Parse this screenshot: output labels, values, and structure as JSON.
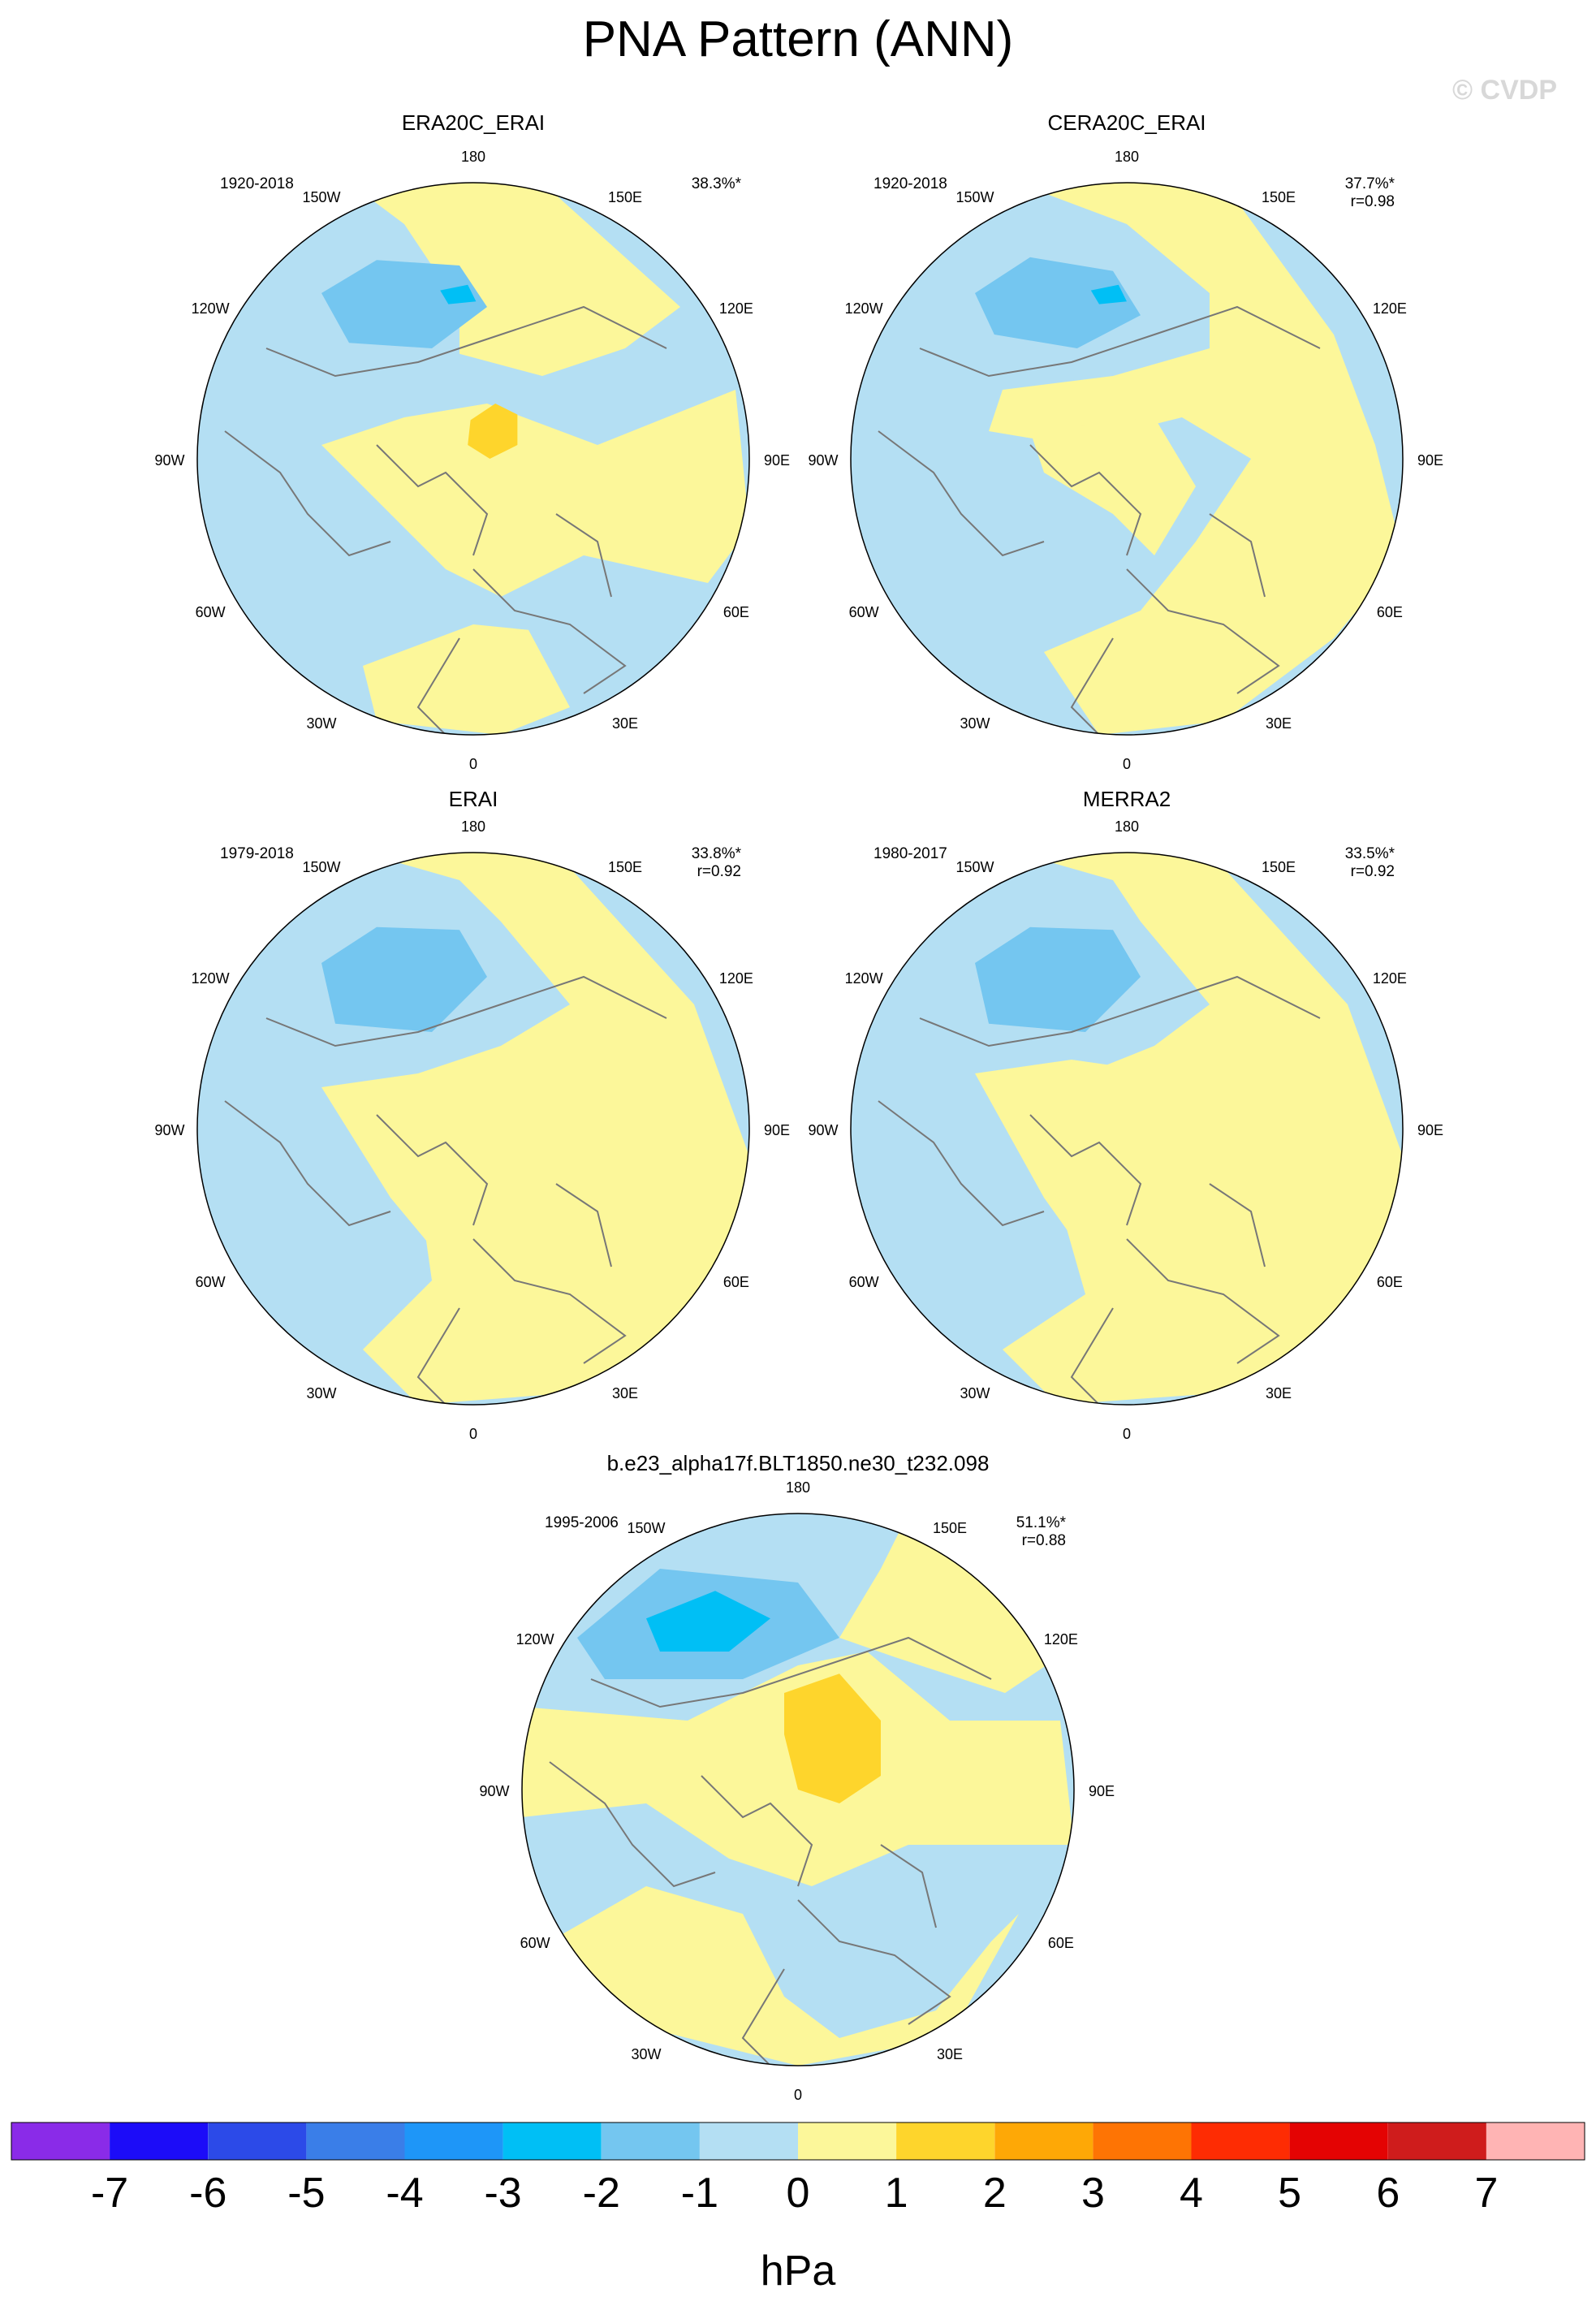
{
  "header": {
    "title": "PNA Pattern (ANN)",
    "copyright": "© CVDP"
  },
  "colors": {
    "land_outline": "#777777",
    "circle_border": "#000000",
    "neg1": "#b4dff3",
    "neg2": "#74c6f0",
    "neg3": "#00bff5",
    "pos1": "#fcf79a",
    "pos2": "#fed52c"
  },
  "lon_labels": [
    "180",
    "150E",
    "120E",
    "90E",
    "60E",
    "30E",
    "0",
    "30W",
    "60W",
    "90W",
    "120W",
    "150W"
  ],
  "panels": [
    {
      "name": "ERA20C_ERAI",
      "period": "1920-2018",
      "pct": "38.3%*",
      "r": "",
      "variant": "a"
    },
    {
      "name": "CERA20C_ERAI",
      "period": "1920-2018",
      "pct": "37.7%*",
      "r": "r=0.98",
      "variant": "b"
    },
    {
      "name": "ERAI",
      "period": "1979-2018",
      "pct": "33.8%*",
      "r": "r=0.92",
      "variant": "c"
    },
    {
      "name": "MERRA2",
      "period": "1980-2017",
      "pct": "33.5%*",
      "r": "r=0.92",
      "variant": "d"
    },
    {
      "name": "b.e23_alpha17f.BLT1850.ne30_t232.098",
      "period": "1995-2006",
      "pct": "51.1%*",
      "r": "r=0.88",
      "variant": "e"
    }
  ],
  "colorbar": {
    "colors": [
      "#8a2be8",
      "#1c0cf8",
      "#2c4ae8",
      "#3a7ee8",
      "#1e96f8",
      "#00bff5",
      "#74c6f0",
      "#b4dff3",
      "#fcf79a",
      "#fed52c",
      "#fea806",
      "#fe7404",
      "#fe2c03",
      "#e40303",
      "#cf1c1c",
      "#ffb4b4"
    ],
    "ticks": [
      "-7",
      "-6",
      "-5",
      "-4",
      "-3",
      "-2",
      "-1",
      "0",
      "1",
      "2",
      "3",
      "4",
      "5",
      "6",
      "7"
    ],
    "unit": "hPa"
  }
}
